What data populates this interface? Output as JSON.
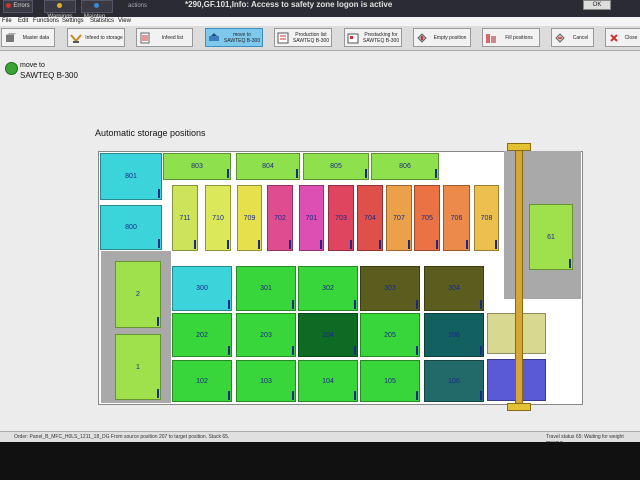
{
  "topbar": {
    "buttons": [
      {
        "label": "Errors"
      },
      {
        "label": "Warnings"
      },
      {
        "label": "Mainten..."
      }
    ],
    "actions_label": "actions",
    "message": "*290,GF.101,Info: Access to safety zone logon is active",
    "ok_label": "OK"
  },
  "menu": [
    "File",
    "Edit",
    "Functions",
    "Settings",
    "Statistics",
    "View"
  ],
  "toolbar": [
    {
      "label": "Master data",
      "icon": "cube-icon"
    },
    {
      "label": "Infeed to storage",
      "icon": "infeed-arrows-icon"
    },
    {
      "label": "Infeed list",
      "icon": "list-icon"
    },
    {
      "label": "move to SAWTEQ B-300",
      "icon": "move-icon",
      "active": true
    },
    {
      "label": "Production list SAWTEQ B-300",
      "icon": "production-list-icon"
    },
    {
      "label": "Prestacking for SAWTEQ B-300",
      "icon": "prestacking-icon"
    },
    {
      "label": "Empty position",
      "icon": "empty-position-icon"
    },
    {
      "label": "Fill positions",
      "icon": "fill-positions-icon"
    },
    {
      "label": "Cancel",
      "icon": "cancel-icon"
    },
    {
      "label": "Close",
      "icon": "close-icon"
    }
  ],
  "status": {
    "line1": "move to",
    "line2": "SAWTEQ B-300"
  },
  "area_title": "Automatic storage positions",
  "colors": {
    "accent_active": "#7ec8ec",
    "status_green": "#3aa534",
    "rail": "#d7a536"
  },
  "positions": [
    {
      "label": "801",
      "color": "#3ad4da"
    },
    {
      "label": "800",
      "color": "#3ad4da"
    },
    {
      "label": "803",
      "color": "#8fe04d"
    },
    {
      "label": "804",
      "color": "#8fe04d"
    },
    {
      "label": "805",
      "color": "#8fe04d"
    },
    {
      "label": "806",
      "color": "#8fe04d"
    },
    {
      "label": "711",
      "color": "#cde35a"
    },
    {
      "label": "710",
      "color": "#dae85a"
    },
    {
      "label": "709",
      "color": "#e6e04d"
    },
    {
      "label": "702",
      "color": "#de4d8f"
    },
    {
      "label": "701",
      "color": "#de4fb4"
    },
    {
      "label": "703",
      "color": "#e04560"
    },
    {
      "label": "704",
      "color": "#e0504a"
    },
    {
      "label": "707",
      "color": "#eba04a"
    },
    {
      "label": "705",
      "color": "#ea7244"
    },
    {
      "label": "706",
      "color": "#eb8a4a"
    },
    {
      "label": "708",
      "color": "#ebc04e"
    },
    {
      "label": "2",
      "color": "#9fe04d"
    },
    {
      "label": "1",
      "color": "#9fe04d"
    },
    {
      "label": "300",
      "color": "#3ad4da"
    },
    {
      "label": "301",
      "color": "#38d63a"
    },
    {
      "label": "302",
      "color": "#38d63a"
    },
    {
      "label": "303",
      "color": "#5a5d1e"
    },
    {
      "label": "304",
      "color": "#5a5d1e"
    },
    {
      "label": "202",
      "color": "#38d63a"
    },
    {
      "label": "203",
      "color": "#38d63a"
    },
    {
      "label": "204",
      "color": "#0d6b24"
    },
    {
      "label": "205",
      "color": "#38d63a"
    },
    {
      "label": "206",
      "color": "#136060"
    },
    {
      "label": "102",
      "color": "#38d63a"
    },
    {
      "label": "103",
      "color": "#38d63a"
    },
    {
      "label": "104",
      "color": "#38d63a"
    },
    {
      "label": "105",
      "color": "#38d63a"
    },
    {
      "label": "106",
      "color": "#226a6a"
    },
    {
      "label": "61",
      "color": "#9fe04d"
    },
    {
      "label": "",
      "color": "#d8d890"
    },
    {
      "label": "",
      "color": "#5a5ad6"
    }
  ],
  "bottom": {
    "left": "Order: Panel_B_MFC_H0LS_1211_18_DG From source position 207 to target position. Stack 65.",
    "right": "Travel status 65: Waiting for weight measur..."
  }
}
